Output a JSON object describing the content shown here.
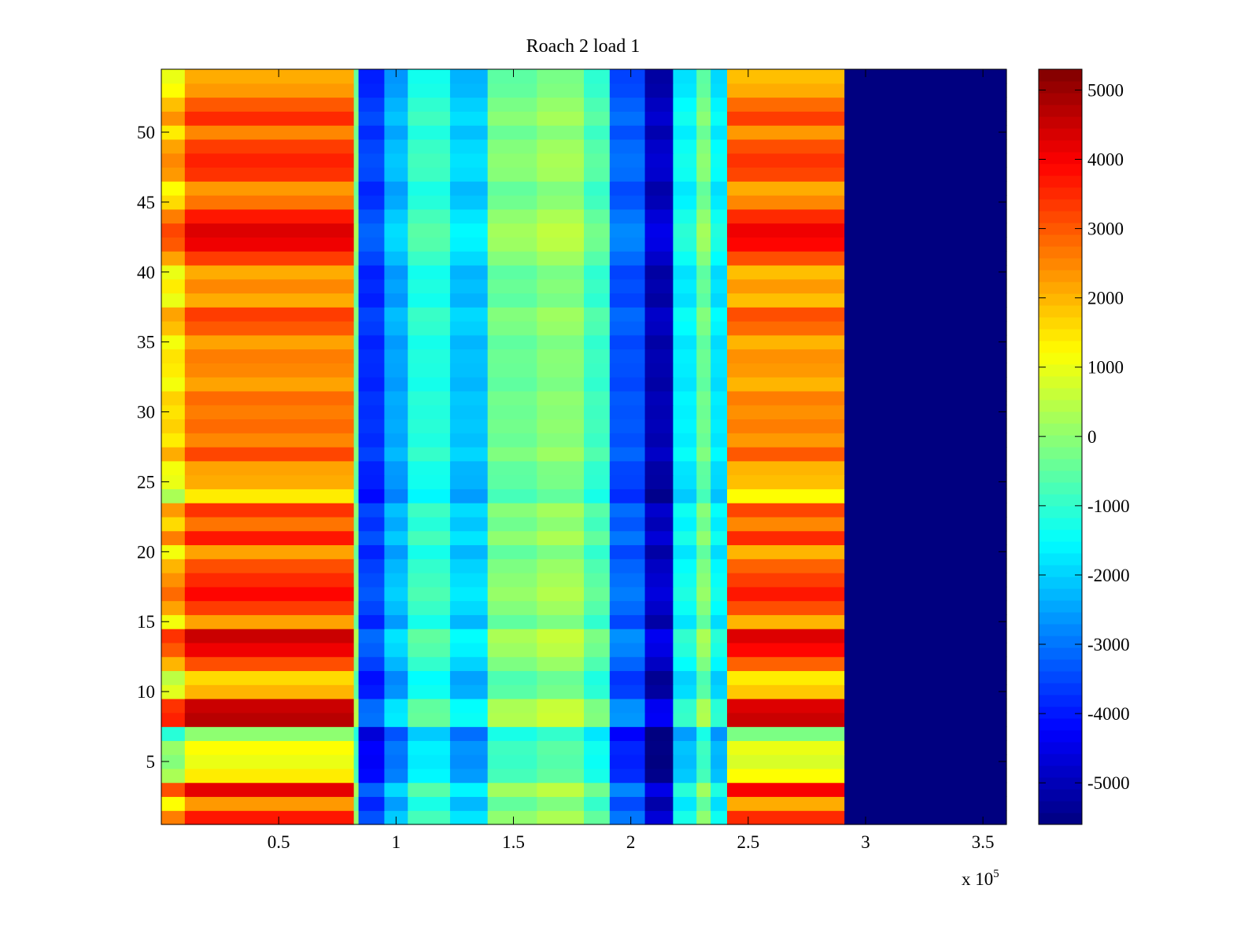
{
  "chart_data": {
    "type": "heatmap",
    "title": "Roach 2 load 1",
    "xlabel": "",
    "ylabel": "",
    "x_multiplier_label": {
      "base": "x 10",
      "exponent": "5"
    },
    "xlim": [
      0,
      360000
    ],
    "ylim": [
      0.5,
      54.5
    ],
    "x_ticks": [
      {
        "value": 50000,
        "label": "0.5"
      },
      {
        "value": 100000,
        "label": "1"
      },
      {
        "value": 150000,
        "label": "1.5"
      },
      {
        "value": 200000,
        "label": "2"
      },
      {
        "value": 250000,
        "label": "2.5"
      },
      {
        "value": 300000,
        "label": "3"
      },
      {
        "value": 350000,
        "label": "3.5"
      }
    ],
    "y_ticks": [
      {
        "value": 5,
        "label": "5"
      },
      {
        "value": 10,
        "label": "10"
      },
      {
        "value": 15,
        "label": "15"
      },
      {
        "value": 20,
        "label": "20"
      },
      {
        "value": 25,
        "label": "25"
      },
      {
        "value": 30,
        "label": "30"
      },
      {
        "value": 35,
        "label": "35"
      },
      {
        "value": 40,
        "label": "40"
      },
      {
        "value": 45,
        "label": "45"
      },
      {
        "value": 50,
        "label": "50"
      }
    ],
    "colorbar": {
      "colormap": "jet",
      "clim": [
        -5600,
        5300
      ],
      "ticks": [
        {
          "value": 5000,
          "label": "5000"
        },
        {
          "value": 4000,
          "label": "4000"
        },
        {
          "value": 3000,
          "label": "3000"
        },
        {
          "value": 2000,
          "label": "2000"
        },
        {
          "value": 1000,
          "label": "1000"
        },
        {
          "value": 0,
          "label": "0"
        },
        {
          "value": -1000,
          "label": "-1000"
        },
        {
          "value": -2000,
          "label": "-2000"
        },
        {
          "value": -3000,
          "label": "-3000"
        },
        {
          "value": -4000,
          "label": "-4000"
        },
        {
          "value": -5000,
          "label": "-5000"
        }
      ]
    },
    "rows": 54,
    "x_segments": [
      {
        "x0": 0,
        "x1": 10000,
        "base": 800
      },
      {
        "x0": 10000,
        "x1": 82000,
        "base": 1900
      },
      {
        "x0": 82000,
        "x1": 84000,
        "base": -500
      },
      {
        "x0": 84000,
        "x1": 95000,
        "base": -4000
      },
      {
        "x0": 95000,
        "x1": 105000,
        "base": -2700
      },
      {
        "x0": 105000,
        "x1": 123000,
        "base": -1400
      },
      {
        "x0": 123000,
        "x1": 139000,
        "base": -2400
      },
      {
        "x0": 139000,
        "x1": 160000,
        "base": -600
      },
      {
        "x0": 160000,
        "x1": 180000,
        "base": -300
      },
      {
        "x0": 180000,
        "x1": 191000,
        "base": -1100
      },
      {
        "x0": 191000,
        "x1": 206000,
        "base": -3600
      },
      {
        "x0": 206000,
        "x1": 218000,
        "base": -5300
      },
      {
        "x0": 218000,
        "x1": 228000,
        "base": -1900
      },
      {
        "x0": 228000,
        "x1": 234000,
        "base": -600
      },
      {
        "x0": 234000,
        "x1": 241000,
        "base": -2000
      },
      {
        "x0": 241000,
        "x1": 291000,
        "base": 1700
      },
      {
        "x0": 291000,
        "x1": 360000,
        "base": -5600
      }
    ],
    "row_offsets": [
      1800,
      400,
      2300,
      -500,
      -900,
      -700,
      -1900,
      2800,
      2600,
      100,
      -300,
      1200,
      2200,
      2600,
      300,
      1400,
      2000,
      1600,
      1200,
      300,
      1800,
      800,
      1500,
      -500,
      200,
      300,
      1300,
      600,
      900,
      700,
      900,
      300,
      600,
      700,
      300,
      1100,
      1400,
      200,
      600,
      200,
      1400,
      2200,
      2400,
      1800,
      800,
      400,
      1500,
      1700,
      1400,
      600,
      1600,
      1100,
      400,
      200
    ]
  }
}
